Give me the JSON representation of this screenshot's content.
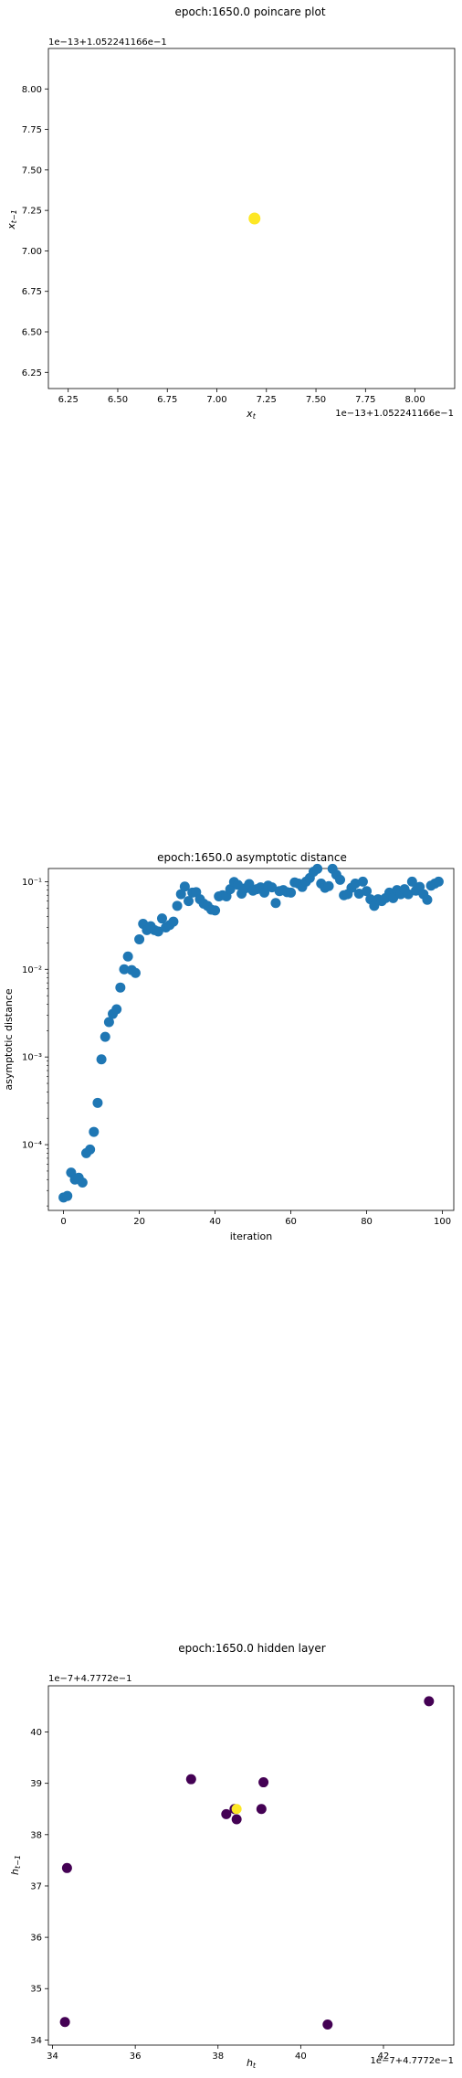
{
  "chart_data": [
    {
      "type": "scatter",
      "title": "epoch:1650.0 poincare plot",
      "xlabel": "x_t",
      "ylabel": "x_{t-1}",
      "x_offset_label": "1e−13+1.052241166e−1",
      "y_offset_label": "1e−13+1.052241166e−1",
      "xlim": [
        6.15,
        8.2
      ],
      "ylim": [
        6.15,
        8.25
      ],
      "xticks": [
        "6.25",
        "6.50",
        "6.75",
        "7.00",
        "7.25",
        "7.50",
        "7.75",
        "8.00"
      ],
      "yticks": [
        "6.25",
        "6.50",
        "6.75",
        "7.00",
        "7.25",
        "7.50",
        "7.75",
        "8.00"
      ],
      "points": [
        {
          "x": 7.19,
          "y": 7.2
        }
      ],
      "color": "#fde725"
    },
    {
      "type": "scatter",
      "title": "epoch:1650.0 asymptotic distance",
      "xlabel": "iteration",
      "ylabel": "asymptotic distance",
      "yscale": "log",
      "xlim": [
        -4,
        103
      ],
      "ylim_exp": [
        -4.75,
        -0.85
      ],
      "xticks": [
        "0",
        "20",
        "40",
        "60",
        "80",
        "100"
      ],
      "yticks": [
        "10⁻⁴",
        "10⁻³",
        "10⁻²",
        "10⁻¹"
      ],
      "color": "#1f77b4",
      "values": [
        2.5e-05,
        2.6e-05,
        4.8e-05,
        4e-05,
        4.2e-05,
        3.7e-05,
        8e-05,
        8.8e-05,
        0.00014,
        0.0003,
        0.00094,
        0.0017,
        0.0025,
        0.0031,
        0.0035,
        0.0062,
        0.01,
        0.014,
        0.0098,
        0.0091,
        0.022,
        0.033,
        0.028,
        0.031,
        0.028,
        0.027,
        0.038,
        0.03,
        0.032,
        0.035,
        0.053,
        0.072,
        0.088,
        0.06,
        0.075,
        0.076,
        0.063,
        0.056,
        0.053,
        0.048,
        0.047,
        0.068,
        0.07,
        0.068,
        0.082,
        0.099,
        0.092,
        0.073,
        0.084,
        0.094,
        0.079,
        0.082,
        0.086,
        0.075,
        0.09,
        0.086,
        0.057,
        0.078,
        0.08,
        0.076,
        0.075,
        0.098,
        0.095,
        0.087,
        0.1,
        0.11,
        0.13,
        0.14,
        0.095,
        0.085,
        0.089,
        0.14,
        0.12,
        0.105,
        0.07,
        0.072,
        0.085,
        0.095,
        0.073,
        0.1,
        0.078,
        0.063,
        0.053,
        0.063,
        0.06,
        0.065,
        0.075,
        0.065,
        0.08,
        0.072,
        0.082,
        0.072,
        0.1,
        0.079,
        0.087,
        0.072,
        0.062,
        0.09,
        0.095,
        0.1
      ]
    },
    {
      "type": "scatter",
      "title": "epoch:1650.0 hidden layer",
      "xlabel": "h_t",
      "ylabel": "h_{t-1}",
      "x_offset_label": "1e−7+4.7772e−1",
      "y_offset_label": "1e−7+4.7772e−1",
      "xlim": [
        33.9,
        43.7
      ],
      "ylim": [
        33.9,
        40.9
      ],
      "xticks": [
        "34",
        "36",
        "38",
        "40",
        "42"
      ],
      "yticks": [
        "34",
        "35",
        "36",
        "37",
        "38",
        "39",
        "40"
      ],
      "colors": {
        "dark": "#440154",
        "yellow": "#fde725"
      },
      "points": [
        {
          "x": 43.1,
          "y": 40.6,
          "c": "dark"
        },
        {
          "x": 37.35,
          "y": 39.08,
          "c": "dark"
        },
        {
          "x": 39.1,
          "y": 39.02,
          "c": "dark"
        },
        {
          "x": 38.2,
          "y": 38.4,
          "c": "dark"
        },
        {
          "x": 38.4,
          "y": 38.5,
          "c": "dark"
        },
        {
          "x": 38.45,
          "y": 38.3,
          "c": "dark"
        },
        {
          "x": 39.05,
          "y": 38.5,
          "c": "dark"
        },
        {
          "x": 38.45,
          "y": 38.5,
          "c": "yellow"
        },
        {
          "x": 34.35,
          "y": 37.35,
          "c": "dark"
        },
        {
          "x": 34.3,
          "y": 34.35,
          "c": "dark"
        },
        {
          "x": 40.65,
          "y": 34.3,
          "c": "dark"
        }
      ]
    }
  ]
}
